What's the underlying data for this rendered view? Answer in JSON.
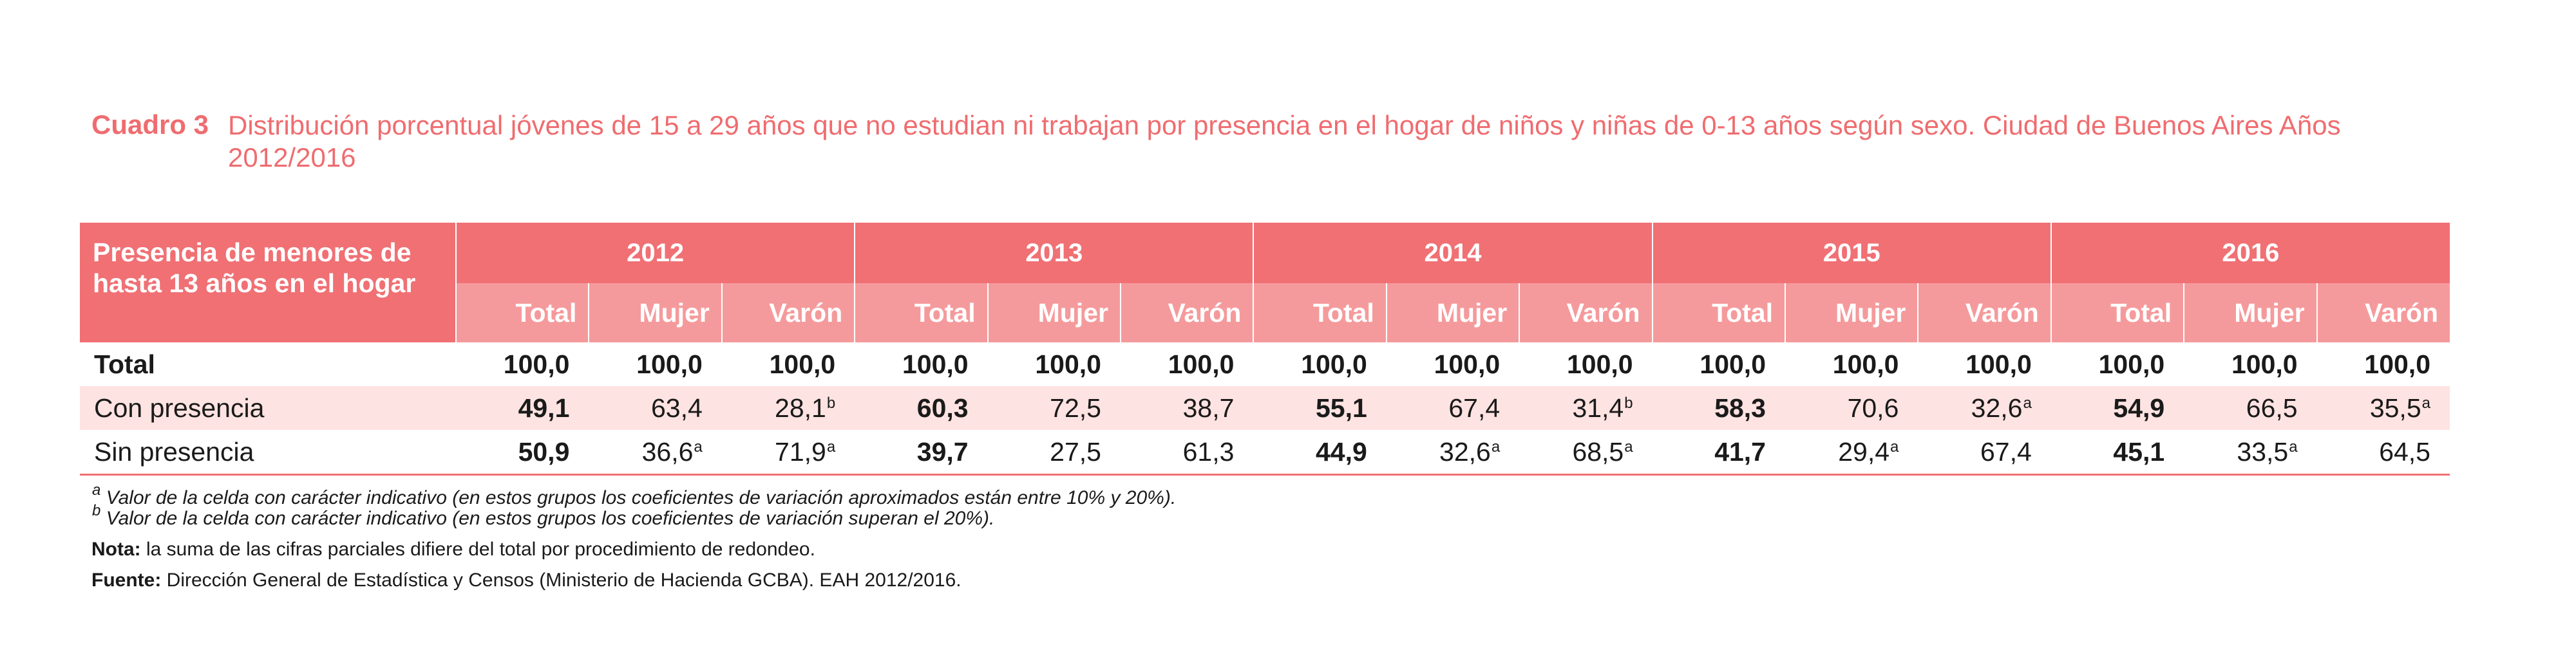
{
  "title": {
    "label": "Cuadro 3",
    "text": "Distribución porcentual jóvenes de 15 a 29 años que no estudian ni trabajan por presencia en el hogar de niños y niñas de 0-13 años según sexo. Ciudad de Buenos Aires Años 2012/2016"
  },
  "table": {
    "stub_header": "Presencia de menores de hasta 13 años en el hogar",
    "years": [
      "2012",
      "2013",
      "2014",
      "2015",
      "2016"
    ],
    "sub_headers": [
      "Total",
      "Mujer",
      "Varón"
    ],
    "rows": [
      {
        "label": "Total",
        "cells": [
          {
            "v": "100,0",
            "s": ""
          },
          {
            "v": "100,0",
            "s": ""
          },
          {
            "v": "100,0",
            "s": ""
          },
          {
            "v": "100,0",
            "s": ""
          },
          {
            "v": "100,0",
            "s": ""
          },
          {
            "v": "100,0",
            "s": ""
          },
          {
            "v": "100,0",
            "s": ""
          },
          {
            "v": "100,0",
            "s": ""
          },
          {
            "v": "100,0",
            "s": ""
          },
          {
            "v": "100,0",
            "s": ""
          },
          {
            "v": "100,0",
            "s": ""
          },
          {
            "v": "100,0",
            "s": ""
          },
          {
            "v": "100,0",
            "s": ""
          },
          {
            "v": "100,0",
            "s": ""
          },
          {
            "v": "100,0",
            "s": ""
          }
        ]
      },
      {
        "label": "Con presencia",
        "cells": [
          {
            "v": "49,1",
            "s": ""
          },
          {
            "v": "63,4",
            "s": ""
          },
          {
            "v": "28,1",
            "s": "b"
          },
          {
            "v": "60,3",
            "s": ""
          },
          {
            "v": "72,5",
            "s": ""
          },
          {
            "v": "38,7",
            "s": ""
          },
          {
            "v": "55,1",
            "s": ""
          },
          {
            "v": "67,4",
            "s": ""
          },
          {
            "v": "31,4",
            "s": "b"
          },
          {
            "v": "58,3",
            "s": ""
          },
          {
            "v": "70,6",
            "s": ""
          },
          {
            "v": "32,6",
            "s": "a"
          },
          {
            "v": "54,9",
            "s": ""
          },
          {
            "v": "66,5",
            "s": ""
          },
          {
            "v": "35,5",
            "s": "a"
          }
        ]
      },
      {
        "label": "Sin presencia",
        "cells": [
          {
            "v": "50,9",
            "s": ""
          },
          {
            "v": "36,6",
            "s": "a"
          },
          {
            "v": "71,9",
            "s": "a"
          },
          {
            "v": "39,7",
            "s": ""
          },
          {
            "v": "27,5",
            "s": ""
          },
          {
            "v": "61,3",
            "s": ""
          },
          {
            "v": "44,9",
            "s": ""
          },
          {
            "v": "32,6",
            "s": "a"
          },
          {
            "v": "68,5",
            "s": "a"
          },
          {
            "v": "41,7",
            "s": ""
          },
          {
            "v": "29,4",
            "s": "a"
          },
          {
            "v": "67,4",
            "s": ""
          },
          {
            "v": "45,1",
            "s": ""
          },
          {
            "v": "33,5",
            "s": "a"
          },
          {
            "v": "64,5",
            "s": ""
          }
        ]
      }
    ]
  },
  "footnotes": {
    "a_mark": "a",
    "a_text": "Valor de la celda con carácter indicativo (en estos grupos los coeficientes de variación aproximados están entre 10% y 20%).",
    "b_mark": "b",
    "b_text": "Valor de la celda con carácter indicativo (en estos grupos los coeficientes de variación superan el 20%).",
    "nota_label": "Nota:",
    "nota_text": "la suma de las cifras parciales difiere del total por procedimiento de redondeo.",
    "fuente_label": "Fuente:",
    "fuente_text": "Dirección General de Estadística y Censos (Ministerio de Hacienda GCBA). EAH 2012/2016."
  },
  "colors": {
    "accent": "#f07074",
    "sub_header": "#f59a9c",
    "row_shade": "#fde3e1",
    "title": "#ef6c6f"
  }
}
